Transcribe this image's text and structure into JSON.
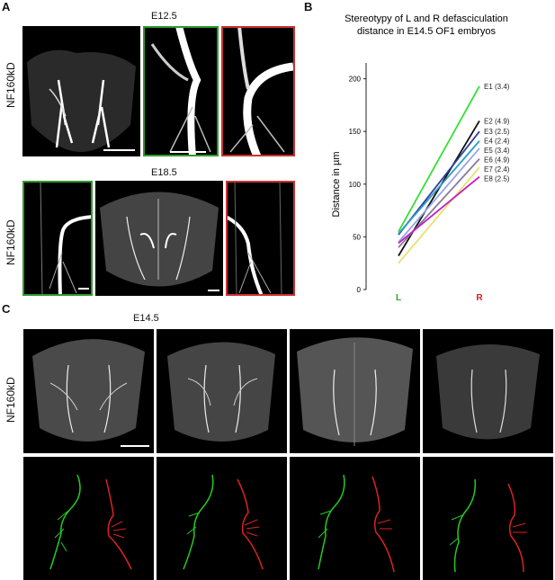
{
  "panels": {
    "a": {
      "letter": "A",
      "stage1": "E12.5",
      "stage2": "E18.5",
      "row_label1": "NF160kD",
      "row_label2": "NF160kD"
    },
    "b": {
      "letter": "B"
    },
    "c": {
      "letter": "C",
      "stage": "E14.5",
      "row_label": "NF160kD"
    }
  },
  "chart_data": {
    "type": "line",
    "title_line1": "Stereotypy of L and R defasciculation",
    "title_line2": "distance in E14.5 OF1 embryos",
    "xlabel": "",
    "ylabel": "Distance in µm",
    "categories": [
      "L",
      "R"
    ],
    "category_colors": [
      "#2aa52a",
      "#d02020"
    ],
    "ylim": [
      0,
      215
    ],
    "yticks": [
      0,
      50,
      100,
      150,
      200
    ],
    "series": [
      {
        "name": "E1 (3.4)",
        "color": "#33e033",
        "values": [
          55,
          193
        ]
      },
      {
        "name": "E2 (4.9)",
        "color": "#111111",
        "values": [
          32,
          160
        ]
      },
      {
        "name": "E3 (2.5)",
        "color": "#2a3f9e",
        "values": [
          52,
          150
        ]
      },
      {
        "name": "E4 (2.4)",
        "color": "#2a9fbf",
        "values": [
          53,
          141
        ]
      },
      {
        "name": "E5 (3.4)",
        "color": "#9aa4e6",
        "values": [
          45,
          134
        ]
      },
      {
        "name": "E6 (4.9)",
        "color": "#8a7a9a",
        "values": [
          40,
          124
        ]
      },
      {
        "name": "E7 (2.4)",
        "color": "#e8e070",
        "values": [
          25,
          116
        ]
      },
      {
        "name": "E8 (2.5)",
        "color": "#c020c0",
        "values": [
          44,
          107
        ]
      }
    ]
  }
}
